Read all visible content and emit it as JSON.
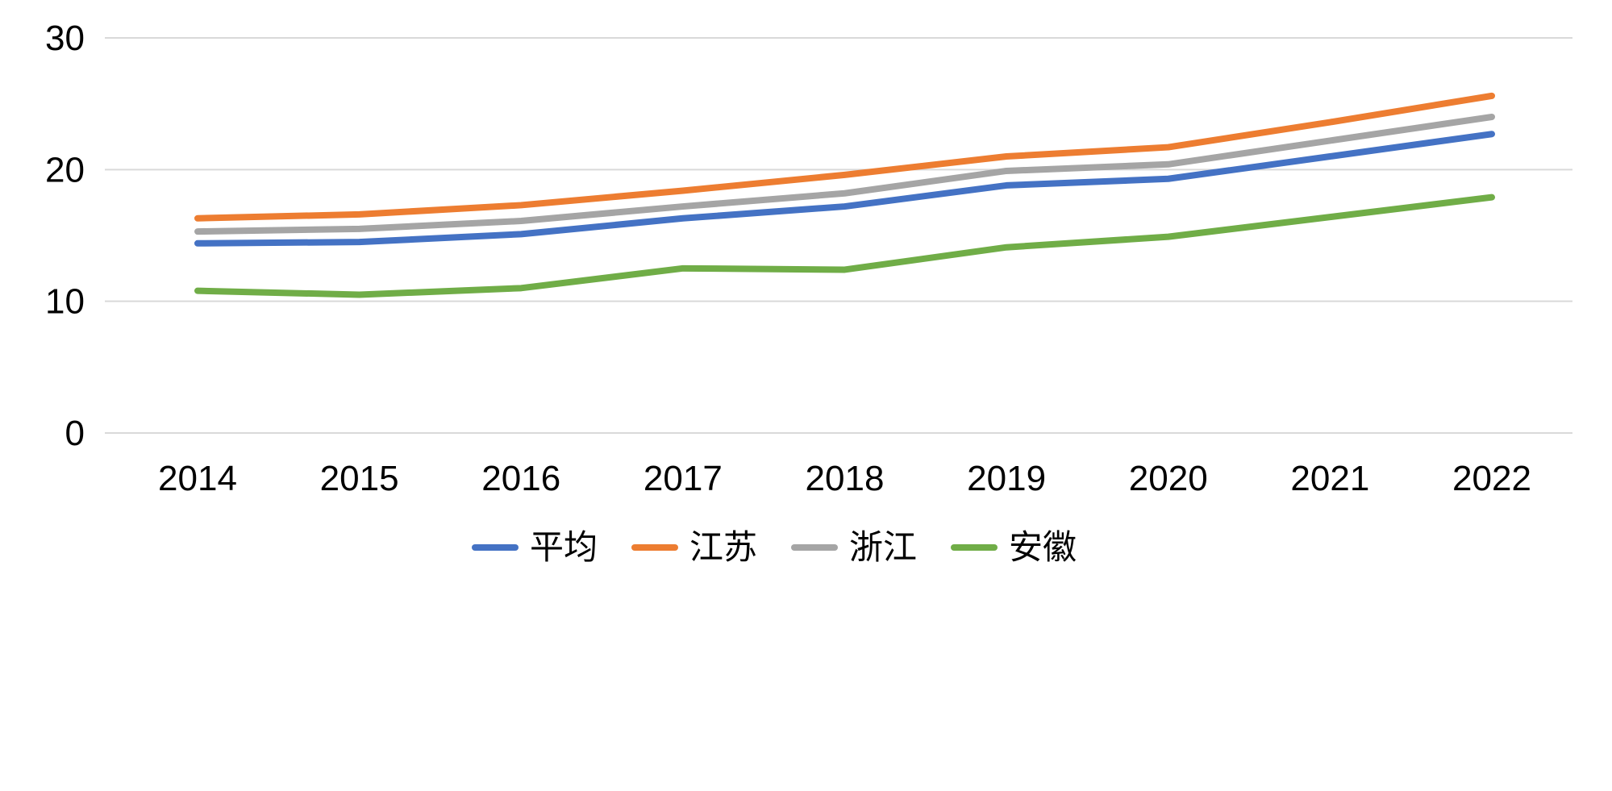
{
  "chart_data": {
    "type": "line",
    "title": "",
    "categories": [
      "2014",
      "2015",
      "2016",
      "2017",
      "2018",
      "2019",
      "2020",
      "2021",
      "2022"
    ],
    "series": [
      {
        "name": "平均",
        "color": "#4472C4",
        "values": [
          14.4,
          14.5,
          15.1,
          16.3,
          17.2,
          18.8,
          19.3,
          21.0,
          22.7
        ]
      },
      {
        "name": "江苏",
        "color": "#ED7D31",
        "values": [
          16.3,
          16.6,
          17.3,
          18.4,
          19.6,
          21.0,
          21.7,
          23.6,
          25.6
        ]
      },
      {
        "name": "浙江",
        "color": "#A5A5A5",
        "values": [
          15.3,
          15.5,
          16.1,
          17.2,
          18.2,
          19.9,
          20.4,
          22.2,
          24.0
        ]
      },
      {
        "name": "安徽",
        "color": "#70AD47",
        "values": [
          10.8,
          10.5,
          11.0,
          12.5,
          12.4,
          14.1,
          14.9,
          16.4,
          17.9
        ]
      }
    ],
    "xlabel": "",
    "ylabel": "",
    "ylim": [
      0,
      30
    ],
    "yticks": [
      0,
      10,
      20,
      30
    ],
    "grid": true,
    "gridline_color": "#D9D9D9",
    "axis_text_color": "#000000",
    "legend_position": "bottom"
  }
}
